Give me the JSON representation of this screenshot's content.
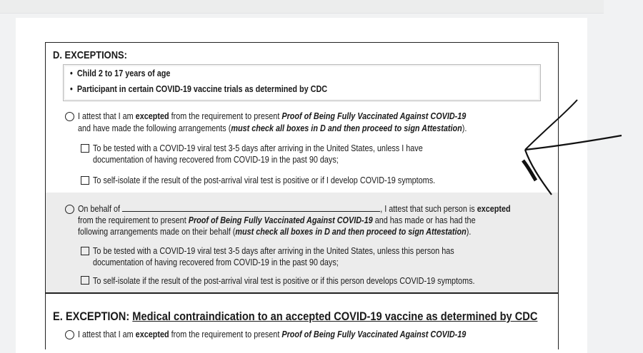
{
  "sectionD": {
    "heading": "D. EXCEPTIONS:",
    "bullets": [
      "Child 2 to 17 years of age",
      "Participant in certain COVID-19 vaccine trials as determined by CDC"
    ],
    "self": {
      "l1a": "I attest that I am ",
      "l1b": "excepted",
      "l1c": " from the requirement to present ",
      "l1d": "Proof of Being Fully Vaccinated Against COVID-19",
      "l2a": "and have made the following arrangements (",
      "l2b": "must check all boxes in D and then proceed to sign Attestation",
      "l2c": ").",
      "check1a": "To be tested with a COVID-19 viral test 3-5 days after arriving in the United States, unless I have",
      "check1b": "documentation of having recovered from COVID-19 in the past 90 days;",
      "check2": "To self-isolate if the result of the post-arrival viral test is positive or if I develop COVID-19 symptoms."
    },
    "behalf": {
      "l1a": "On behalf of",
      "l1b": ", I attest that such person is ",
      "l1c": "excepted",
      "l2a": "from the requirement to present ",
      "l2b": "Proof of Being Fully Vaccinated Against COVID-19",
      "l2c": " and has made or has had the",
      "l3a": "following arrangements made on their behalf (",
      "l3b": "must check all boxes in D and then proceed to sign Attestation",
      "l3c": ").",
      "check1a": "To be tested with a COVID-19 viral test 3-5 days after arriving in the United States, unless this person has",
      "check1b": "documentation of having recovered from COVID-19 in the past 90 days;",
      "check2": "To self-isolate if the result of the post-arrival viral test is positive or if this person develops COVID-19 symptoms."
    }
  },
  "sectionE": {
    "heading_a": "E.  EXCEPTION: ",
    "heading_b": "Medical contraindication to an accepted COVID-19 vaccine as determined by CDC",
    "l1a": "I attest that I am ",
    "l1b": "excepted",
    "l1c": " from the requirement to present ",
    "l1d": "Proof of Being Fully Vaccinated Against COVID-19"
  }
}
